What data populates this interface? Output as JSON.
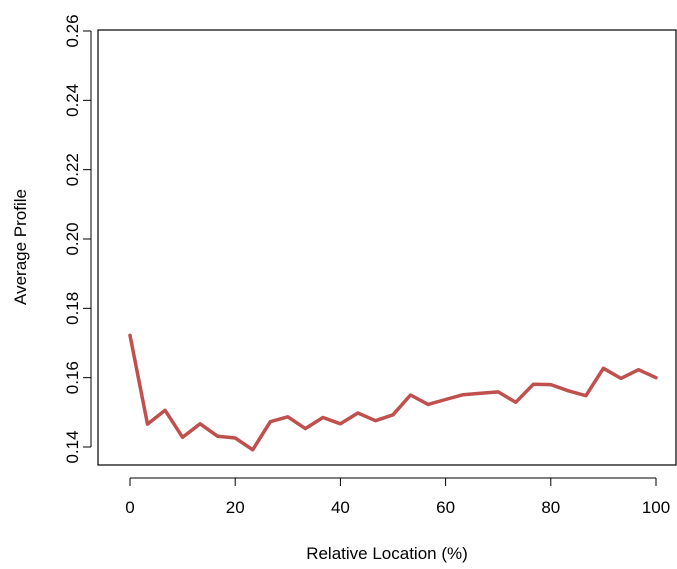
{
  "chart_data": {
    "type": "line",
    "title": "",
    "xlabel": "Relative Location (%)",
    "ylabel": "Average Profile",
    "xlim": [
      0,
      100
    ],
    "ylim": [
      0.14,
      0.26
    ],
    "x_ticks": [
      0,
      20,
      40,
      60,
      80,
      100
    ],
    "y_ticks": [
      0.14,
      0.16,
      0.18,
      0.2,
      0.22,
      0.24,
      0.26
    ],
    "x_tick_labels": [
      "0",
      "20",
      "40",
      "60",
      "80",
      "100"
    ],
    "y_tick_labels": [
      "0.14",
      "0.16",
      "0.18",
      "0.20",
      "0.22",
      "0.24",
      "0.26"
    ],
    "grid": false,
    "legend": "none",
    "series": [
      {
        "color": "#c0504d",
        "x": [
          0,
          3.33,
          6.67,
          10,
          13.33,
          16.67,
          20,
          23.33,
          26.67,
          30,
          33.33,
          36.67,
          40,
          43.33,
          46.67,
          50,
          53.33,
          56.67,
          60,
          63.33,
          66.67,
          70,
          73.33,
          76.67,
          80,
          83.33,
          86.67,
          90,
          93.33,
          96.67,
          100
        ],
        "values": [
          0.1722,
          0.1466,
          0.1506,
          0.1428,
          0.1467,
          0.1431,
          0.1426,
          0.1392,
          0.1473,
          0.1487,
          0.1453,
          0.1485,
          0.1467,
          0.1498,
          0.1476,
          0.1493,
          0.155,
          0.1523,
          0.1537,
          0.1551,
          0.1555,
          0.1559,
          0.1529,
          0.1581,
          0.158,
          0.1562,
          0.1548,
          0.1627,
          0.1598,
          0.1623,
          0.16
        ]
      }
    ]
  }
}
